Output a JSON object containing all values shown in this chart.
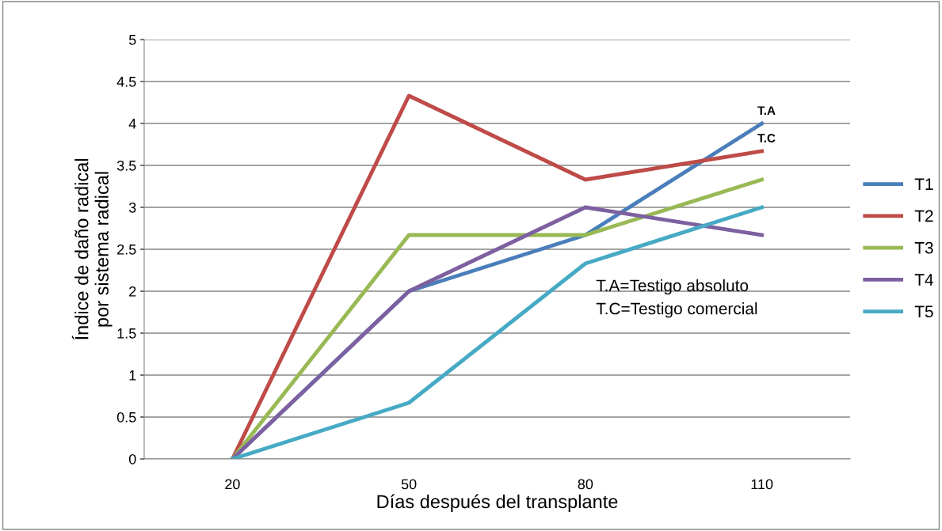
{
  "chart_data": {
    "type": "line",
    "xlabel": "Días después del transplante",
    "ylabel": "Índice de daño radical\npor sistema radical",
    "categories": [
      "20",
      "50",
      "80",
      "110"
    ],
    "series": [
      {
        "name": "T1",
        "color": "#4a7ebb",
        "values": [
          0,
          2,
          2.67,
          4
        ]
      },
      {
        "name": "T2",
        "color": "#be4b48",
        "values": [
          0,
          4.33,
          3.33,
          3.67
        ]
      },
      {
        "name": "T3",
        "color": "#98b954",
        "values": [
          0,
          2.67,
          2.67,
          3.33
        ]
      },
      {
        "name": "T4",
        "color": "#7d60a0",
        "values": [
          0,
          2,
          3,
          2.67
        ]
      },
      {
        "name": "T5",
        "color": "#46aac5",
        "values": [
          0,
          0.67,
          2.33,
          3
        ]
      }
    ],
    "ylim": [
      0,
      5
    ],
    "yticks": [
      0,
      0.5,
      1,
      1.5,
      2,
      2.5,
      3,
      3.5,
      4,
      4.5,
      5
    ],
    "grid": "y",
    "legend": "right",
    "marker": "none",
    "line_style": "solid",
    "annotations": [
      {
        "text": "T.A",
        "x": "110",
        "y": 4
      },
      {
        "text": "T.C",
        "x": "110",
        "y": 3.67
      },
      "T.A=Testigo absoluto",
      "T.C=Testigo comercial"
    ]
  }
}
